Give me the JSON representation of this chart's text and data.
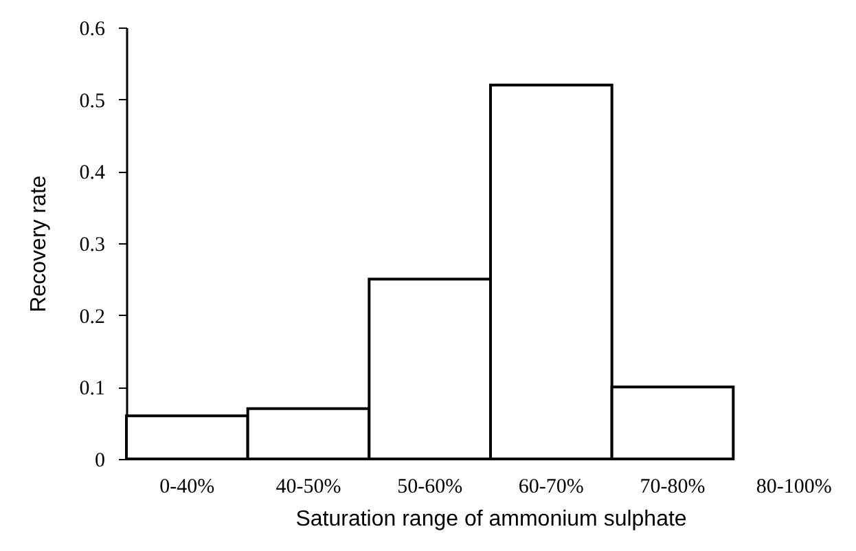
{
  "chart_data": {
    "type": "bar",
    "xlabel": "Saturation range of ammonium sulphate",
    "ylabel": "Recovery rate",
    "categories": [
      "0-40%",
      "40-50%",
      "50-60%",
      "60-70%",
      "70-80%",
      "80-100%"
    ],
    "values": [
      0.06,
      0.07,
      0.25,
      0.52,
      0.1,
      null
    ],
    "color": "#ffffff",
    "ylim": [
      0,
      0.6
    ],
    "yticks": [
      0,
      0.1,
      0.2,
      0.3,
      0.4,
      0.5,
      0.6
    ],
    "grid": false
  }
}
